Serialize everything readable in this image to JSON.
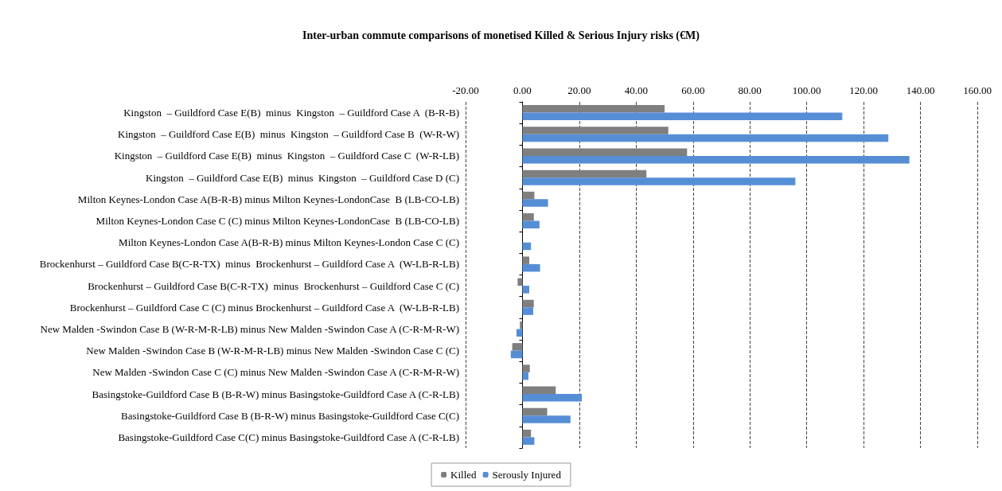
{
  "chart_data": {
    "type": "bar",
    "orientation": "horizontal",
    "title": "Inter-urban commute comparisons of monetised Killed & Serious Injury risks (€M)",
    "categories": [
      "Kingston  – Guildford Case E(B)  minus  Kingston  – Guildford Case A  (B-R-B)",
      "Kingston  – Guildford Case E(B)  minus  Kingston  – Guildford Case B  (W-R-W)",
      "Kingston  – Guildford Case E(B)  minus  Kingston  – Guildford Case C  (W-R-LB)",
      "Kingston  – Guildford Case E(B)  minus  Kingston  – Guildford Case D (C)",
      "Milton Keynes-London Case A(B-R-B) minus Milton Keynes-LondonCase  B (LB-CO-LB)",
      "Milton Keynes-London Case C (C) minus Milton Keynes-LondonCase  B (LB-CO-LB)",
      "Milton Keynes-London Case A(B-R-B) minus Milton Keynes-London Case C (C)",
      "Brockenhurst – Guildford Case B(C-R-TX)  minus  Brockenhurst – Guildford Case A  (W-LB-R-LB)",
      "Brockenhurst – Guildford Case B(C-R-TX)  minus  Brockenhurst – Guildford Case C (C)",
      "Brockenhurst – Guildford Case C (C) minus Brockenhurst – Guildford Case A  (W-LB-R-LB)",
      "New Malden -Swindon Case B (W-R-M-R-LB) minus New Malden -Swindon Case A (C-R-M-R-W)",
      "New Malden -Swindon Case B (W-R-M-R-LB) minus New Malden -Swindon Case C (C)",
      "New Malden -Swindon Case C (C) minus New Malden -Swindon Case A (C-R-M-R-W)",
      "Basingstoke-Guildford Case B (B-R-W) minus Basingstoke-Guildford Case A (C-R-LB)",
      "Basingstoke-Guildford Case B (B-R-W) minus Basingstoke-Guildford Case C(C)",
      "Basingstoke-Guildford Case C(C) minus Basingstoke-Guildford Case A (C-R-LB)"
    ],
    "series": [
      {
        "name": "Killed",
        "color": "#7f7f7f",
        "values": [
          50,
          51.3,
          57.9,
          43.6,
          4.2,
          4.0,
          0,
          2.4,
          -1.7,
          4.0,
          -0.9,
          -3.6,
          2.6,
          11.7,
          8.7,
          3.0
        ]
      },
      {
        "name": "Serously Injured",
        "color": "#558ed5",
        "values": [
          112.5,
          128.7,
          136.1,
          96.0,
          9.0,
          6.0,
          3.0,
          6.2,
          2.4,
          3.8,
          -2.1,
          -4.1,
          2.1,
          20.9,
          16.9,
          4.2
        ]
      }
    ],
    "xlim": [
      -20,
      160
    ],
    "xticks": [
      {
        "value": -20,
        "label": "-20.00"
      },
      {
        "value": 0,
        "label": "0.00"
      },
      {
        "value": 20,
        "label": "20.00"
      },
      {
        "value": 40,
        "label": "40.00"
      },
      {
        "value": 60,
        "label": "60.00"
      },
      {
        "value": 80,
        "label": "80.00"
      },
      {
        "value": 100,
        "label": "100.00"
      },
      {
        "value": 120,
        "label": "120.00"
      },
      {
        "value": 140,
        "label": "140.00"
      },
      {
        "value": 160,
        "label": "160.00"
      }
    ],
    "grid": "x",
    "legend": "bottom"
  }
}
